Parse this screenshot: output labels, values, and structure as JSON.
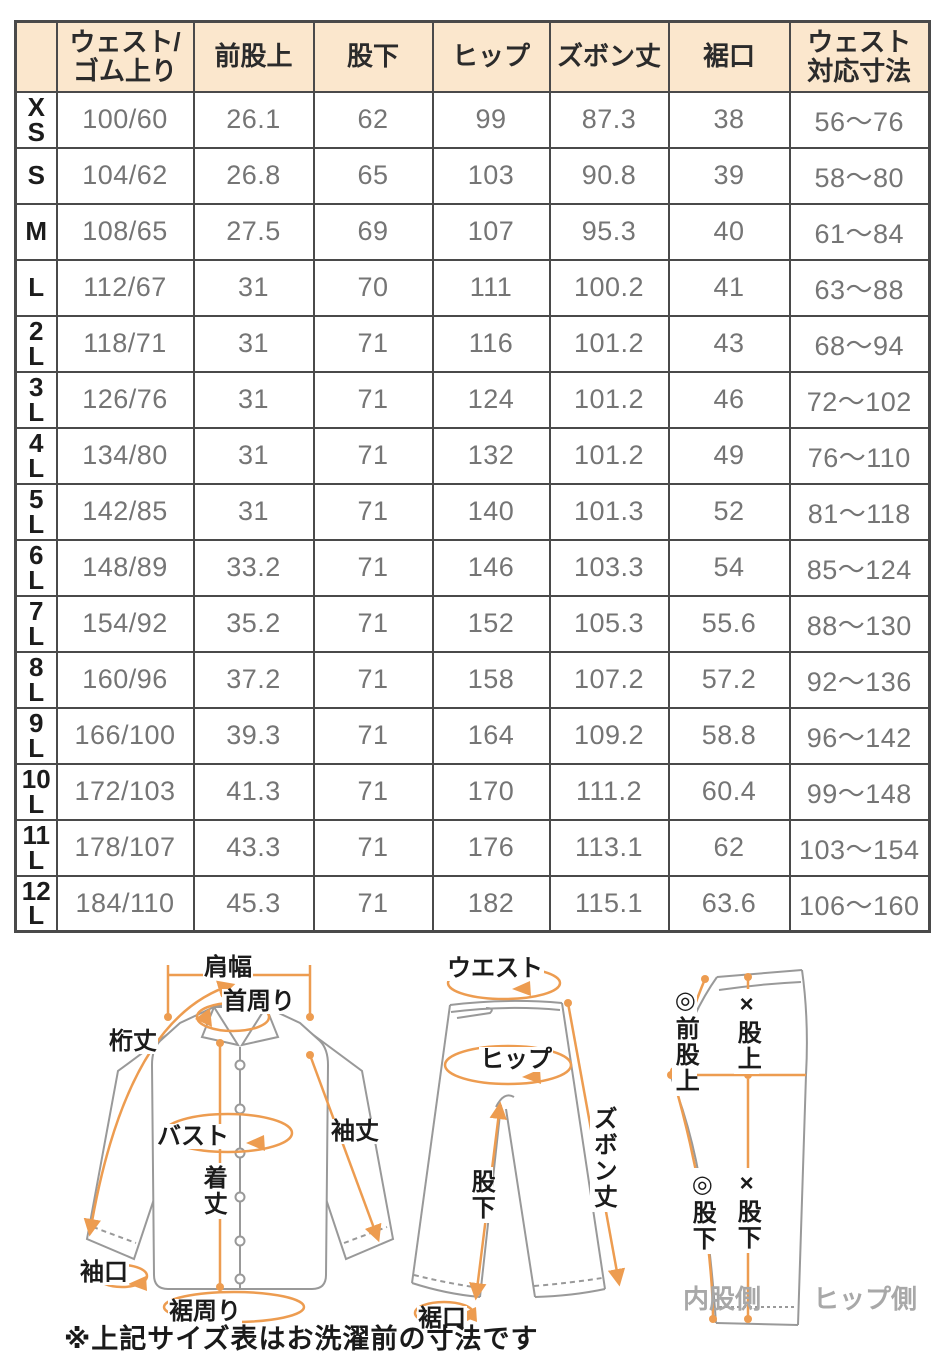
{
  "table": {
    "corner_label": "",
    "columns": [
      "ウェスト/\nゴム上り",
      "前股上",
      "股下",
      "ヒップ",
      "ズボン丈",
      "裾口",
      "ウェスト\n対応寸法"
    ],
    "rows": [
      {
        "size": "X\nS",
        "values": [
          "100/60",
          "26.1",
          "62",
          "99",
          "87.3",
          "38",
          "56〜76"
        ]
      },
      {
        "size": "S",
        "values": [
          "104/62",
          "26.8",
          "65",
          "103",
          "90.8",
          "39",
          "58〜80"
        ]
      },
      {
        "size": "M",
        "values": [
          "108/65",
          "27.5",
          "69",
          "107",
          "95.3",
          "40",
          "61〜84"
        ]
      },
      {
        "size": "L",
        "values": [
          "112/67",
          "31",
          "70",
          "111",
          "100.2",
          "41",
          "63〜88"
        ]
      },
      {
        "size": "2\nL",
        "values": [
          "118/71",
          "31",
          "71",
          "116",
          "101.2",
          "43",
          "68〜94"
        ]
      },
      {
        "size": "3\nL",
        "values": [
          "126/76",
          "31",
          "71",
          "124",
          "101.2",
          "46",
          "72〜102"
        ]
      },
      {
        "size": "4\nL",
        "values": [
          "134/80",
          "31",
          "71",
          "132",
          "101.2",
          "49",
          "76〜110"
        ]
      },
      {
        "size": "5\nL",
        "values": [
          "142/85",
          "31",
          "71",
          "140",
          "101.3",
          "52",
          "81〜118"
        ]
      },
      {
        "size": "6\nL",
        "values": [
          "148/89",
          "33.2",
          "71",
          "146",
          "103.3",
          "54",
          "85〜124"
        ]
      },
      {
        "size": "7\nL",
        "values": [
          "154/92",
          "35.2",
          "71",
          "152",
          "105.3",
          "55.6",
          "88〜130"
        ]
      },
      {
        "size": "8\nL",
        "values": [
          "160/96",
          "37.2",
          "71",
          "158",
          "107.2",
          "57.2",
          "92〜136"
        ]
      },
      {
        "size": "9\nL",
        "values": [
          "166/100",
          "39.3",
          "71",
          "164",
          "109.2",
          "58.8",
          "96〜142"
        ]
      },
      {
        "size": "10\nL",
        "values": [
          "172/103",
          "41.3",
          "71",
          "170",
          "111.2",
          "60.4",
          "99〜148"
        ]
      },
      {
        "size": "11\nL",
        "values": [
          "178/107",
          "43.3",
          "71",
          "176",
          "113.1",
          "62",
          "103〜154"
        ]
      },
      {
        "size": "12\nL",
        "values": [
          "184/110",
          "45.3",
          "71",
          "182",
          "115.1",
          "63.6",
          "106〜160"
        ]
      }
    ]
  },
  "diagrams": {
    "shirt": {
      "shoulder_width": "肩幅",
      "neck_around": "首周り",
      "sleeve_total_length": "桁丈",
      "bust": "バスト",
      "sleeve_length": "袖丈",
      "body_length": "着丈",
      "cuff_opening": "袖口",
      "hem_around": "裾周り"
    },
    "pants_front": {
      "waist": "ウエスト",
      "hip": "ヒップ",
      "pants_length": "ズボン丈",
      "inseam": "股下",
      "hem_opening": "裾口"
    },
    "pants_side": {
      "front_rise": "◎前股上",
      "rise": "×股上",
      "inseam_inner": "◎股下",
      "inseam_side": "×股下",
      "inner_thigh_side": "内股側",
      "hip_side": "ヒップ側"
    }
  },
  "note": "※上記サイズ表はお洗濯前の寸法です",
  "colors": {
    "header_bg": "#fbe7cd",
    "table_border": "#4a4a4a",
    "value_text": "#757575",
    "label_text": "#1c1c1c",
    "accent_orange": "#ED9C50",
    "outline_gray": "#999999",
    "side_label_gray": "#a8a8a8"
  }
}
